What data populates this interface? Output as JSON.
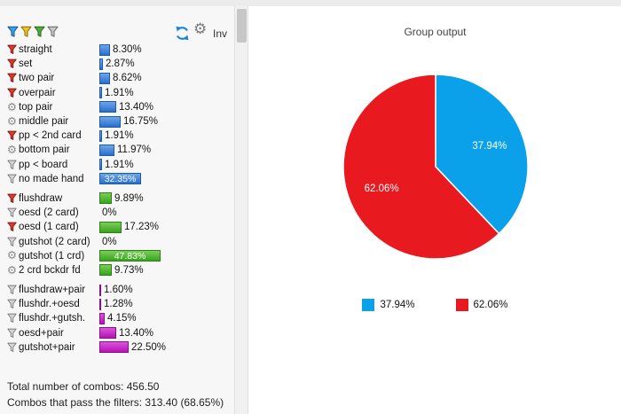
{
  "toolbar": {
    "inv_label": "Inv",
    "filters": [
      {
        "name": "filter-funnel-blue",
        "fill": "#3aa0e8",
        "stroke": "#1b5e93"
      },
      {
        "name": "filter-funnel-yellow",
        "fill": "#ecc41c",
        "stroke": "#8f7410"
      },
      {
        "name": "filter-funnel-green",
        "fill": "#56ad3a",
        "stroke": "#2f6b1e"
      },
      {
        "name": "filter-funnel-gray",
        "fill": "#c9c9c9",
        "stroke": "#6f6f6f"
      }
    ],
    "refresh_color": "#1e82d8",
    "gear_glyph": "⚙"
  },
  "colors": {
    "icons": {
      "funnel-red": {
        "fill": "#e2392c",
        "stroke": "#791a11"
      },
      "funnel-gray": {
        "fill": "#d6d6d6",
        "stroke": "#7c7c7c"
      }
    },
    "bars": {
      "made": {
        "top": "#6ea6e8",
        "bottom": "#2a6fce",
        "border": "#1d5ca8"
      },
      "draw": {
        "top": "#79cf57",
        "bottom": "#3aa31f",
        "border": "#2d7f17"
      },
      "combo": {
        "top": "#dc52dc",
        "bottom": "#b513b5",
        "border": "#870f87"
      }
    }
  },
  "stats": {
    "rows": [
      {
        "label": "straight",
        "value": "8.30%",
        "pct": 8.3,
        "group": "made",
        "icon": "funnel-red",
        "highlight": false,
        "gap_before": false
      },
      {
        "label": "set",
        "value": "2.87%",
        "pct": 2.87,
        "group": "made",
        "icon": "funnel-red",
        "highlight": false,
        "gap_before": false
      },
      {
        "label": "two pair",
        "value": "8.62%",
        "pct": 8.62,
        "group": "made",
        "icon": "funnel-red",
        "highlight": false,
        "gap_before": false
      },
      {
        "label": "overpair",
        "value": "1.91%",
        "pct": 1.91,
        "group": "made",
        "icon": "funnel-red",
        "highlight": false,
        "gap_before": false
      },
      {
        "label": "top pair",
        "value": "13.40%",
        "pct": 13.4,
        "group": "made",
        "icon": "gear",
        "highlight": false,
        "gap_before": false
      },
      {
        "label": "middle pair",
        "value": "16.75%",
        "pct": 16.75,
        "group": "made",
        "icon": "gear",
        "highlight": false,
        "gap_before": false
      },
      {
        "label": "pp < 2nd card",
        "value": "1.91%",
        "pct": 1.91,
        "group": "made",
        "icon": "funnel-red",
        "highlight": false,
        "gap_before": false
      },
      {
        "label": "bottom pair",
        "value": "11.97%",
        "pct": 11.97,
        "group": "made",
        "icon": "gear",
        "highlight": false,
        "gap_before": false
      },
      {
        "label": "pp < board",
        "value": "1.91%",
        "pct": 1.91,
        "group": "made",
        "icon": "funnel-gray",
        "highlight": false,
        "gap_before": false
      },
      {
        "label": "no made hand",
        "value": "32.35%",
        "pct": 32.35,
        "group": "made",
        "icon": "funnel-gray",
        "highlight": true,
        "gap_before": false
      },
      {
        "label": "flushdraw",
        "value": "9.89%",
        "pct": 9.89,
        "group": "draw",
        "icon": "funnel-red",
        "highlight": false,
        "gap_before": true
      },
      {
        "label": "oesd (2 card)",
        "value": "0%",
        "pct": 0,
        "group": "draw",
        "icon": "funnel-gray",
        "highlight": false,
        "gap_before": false
      },
      {
        "label": "oesd (1 card)",
        "value": "17.23%",
        "pct": 17.23,
        "group": "draw",
        "icon": "funnel-red",
        "highlight": false,
        "gap_before": false
      },
      {
        "label": "gutshot (2 card)",
        "value": "0%",
        "pct": 0,
        "group": "draw",
        "icon": "funnel-gray",
        "highlight": false,
        "gap_before": false
      },
      {
        "label": "gutshot (1 crd)",
        "value": "47.83%",
        "pct": 47.83,
        "group": "draw",
        "icon": "gear",
        "highlight": true,
        "gap_before": false
      },
      {
        "label": "2 crd bckdr fd",
        "value": "9.73%",
        "pct": 9.73,
        "group": "draw",
        "icon": "gear",
        "highlight": false,
        "gap_before": false
      },
      {
        "label": "flushdraw+pair",
        "value": "1.60%",
        "pct": 1.6,
        "group": "combo",
        "icon": "funnel-gray",
        "highlight": false,
        "gap_before": true
      },
      {
        "label": "flushdr.+oesd",
        "value": "1.28%",
        "pct": 1.28,
        "group": "combo",
        "icon": "funnel-gray",
        "highlight": false,
        "gap_before": false
      },
      {
        "label": "flushdr.+gutsh.",
        "value": "4.15%",
        "pct": 4.15,
        "group": "combo",
        "icon": "funnel-gray",
        "highlight": false,
        "gap_before": false
      },
      {
        "label": "oesd+pair",
        "value": "13.40%",
        "pct": 13.4,
        "group": "combo",
        "icon": "funnel-gray",
        "highlight": false,
        "gap_before": false
      },
      {
        "label": "gutshot+pair",
        "value": "22.50%",
        "pct": 22.5,
        "group": "combo",
        "icon": "funnel-gray",
        "highlight": false,
        "gap_before": false
      }
    ],
    "totals": [
      "Total number of combos: 456.50",
      "Combos that pass the filters: 313.40 (68.65%)"
    ]
  },
  "chart_data": {
    "type": "pie",
    "title": "Group output",
    "slices": [
      {
        "label": "37.94%",
        "value": 37.94,
        "color": "#0ba1ea"
      },
      {
        "label": "62.06%",
        "value": 62.06,
        "color": "#e81a20"
      }
    ],
    "start_angle_deg": -90,
    "direction": "clockwise",
    "labels_inside": true,
    "legend_position": "bottom"
  }
}
